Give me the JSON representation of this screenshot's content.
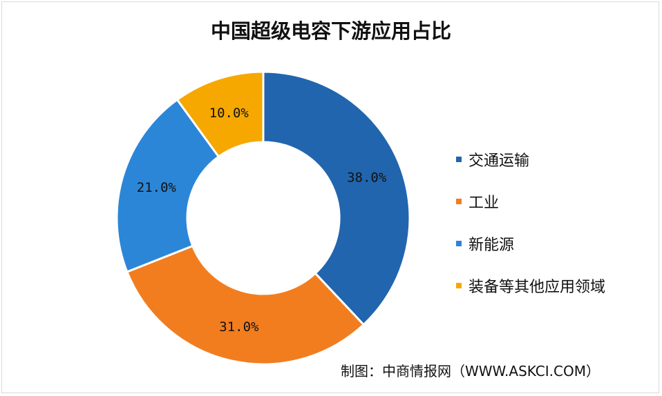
{
  "chart_data": {
    "type": "pie",
    "title": "中国超级电容下游应用占比",
    "donut": true,
    "categories": [
      "交通运输",
      "工业",
      "新能源",
      "装备等其他应用领域"
    ],
    "values": [
      38.0,
      31.0,
      21.0,
      10.0
    ],
    "data_labels": [
      "38.0%",
      "31.0%",
      "21.0%",
      "10.0%"
    ],
    "colors": [
      "#2165ae",
      "#f27d1f",
      "#2b86d8",
      "#f6a800"
    ],
    "legend_position": "right",
    "source": "制图：中商情报网（WWW.ASKCI.COM）"
  }
}
